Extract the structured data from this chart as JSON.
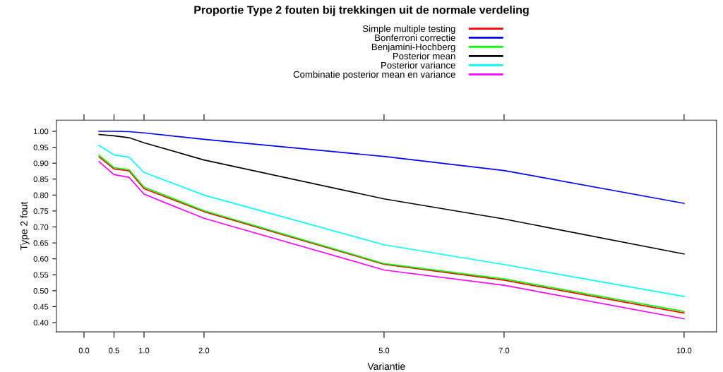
{
  "chart_data": {
    "type": "line",
    "title": "Proportie Type 2 fouten bij trekkingen uit de normale verdeling",
    "xlabel": "Variantie",
    "ylabel": "Type 2 fout",
    "x": [
      0.25,
      0.5,
      0.75,
      1.0,
      2.0,
      5.0,
      7.0,
      10.0
    ],
    "series": [
      {
        "name": "Simple multiple testing",
        "color": "#ff0000",
        "values": [
          0.92,
          0.882,
          0.876,
          0.82,
          0.748,
          0.583,
          0.533,
          0.43
        ]
      },
      {
        "name": "Bonferroni correctie",
        "color": "#0000ff",
        "values": [
          1.0,
          1.0,
          0.999,
          0.995,
          0.975,
          0.921,
          0.877,
          0.774
        ]
      },
      {
        "name": "Benjamini-Hochberg",
        "color": "#00ff00",
        "values": [
          0.925,
          0.886,
          0.88,
          0.825,
          0.751,
          0.585,
          0.537,
          0.435
        ]
      },
      {
        "name": "Posterior mean",
        "color": "#000000",
        "values": [
          0.99,
          0.986,
          0.98,
          0.964,
          0.91,
          0.788,
          0.725,
          0.615
        ]
      },
      {
        "name": "Posterior variance",
        "color": "#00ffff",
        "values": [
          0.956,
          0.926,
          0.919,
          0.871,
          0.8,
          0.644,
          0.582,
          0.482
        ]
      },
      {
        "name": "Combinatie posterior mean en variance",
        "color": "#ff00ff",
        "values": [
          0.905,
          0.864,
          0.856,
          0.803,
          0.727,
          0.565,
          0.517,
          0.412
        ]
      }
    ],
    "xlim": [
      -0.46,
      10.54
    ],
    "ylim": [
      0.371,
      1.035
    ],
    "xticks": [
      {
        "value": 0,
        "label": "0.0"
      },
      {
        "value": 0.5,
        "label": "0.5"
      },
      {
        "value": 1,
        "label": "1.0"
      },
      {
        "value": 2,
        "label": "2.0"
      },
      {
        "value": 5,
        "label": "5.0"
      },
      {
        "value": 7,
        "label": "7.0"
      },
      {
        "value": 10,
        "label": "10.0"
      }
    ],
    "yticks": [
      {
        "value": 0.4,
        "label": "0.40"
      },
      {
        "value": 0.45,
        "label": "0.45"
      },
      {
        "value": 0.5,
        "label": "0.50"
      },
      {
        "value": 0.55,
        "label": "0.55"
      },
      {
        "value": 0.6,
        "label": "0.60"
      },
      {
        "value": 0.65,
        "label": "0.65"
      },
      {
        "value": 0.7,
        "label": "0.70"
      },
      {
        "value": 0.75,
        "label": "0.75"
      },
      {
        "value": 0.8,
        "label": "0.80"
      },
      {
        "value": 0.85,
        "label": "0.85"
      },
      {
        "value": 0.9,
        "label": "0.90"
      },
      {
        "value": 0.95,
        "label": "0.95"
      },
      {
        "value": 1.0,
        "label": "1.00"
      }
    ],
    "legend": "top",
    "grid": false,
    "marker": "none",
    "line_style": "solid"
  }
}
